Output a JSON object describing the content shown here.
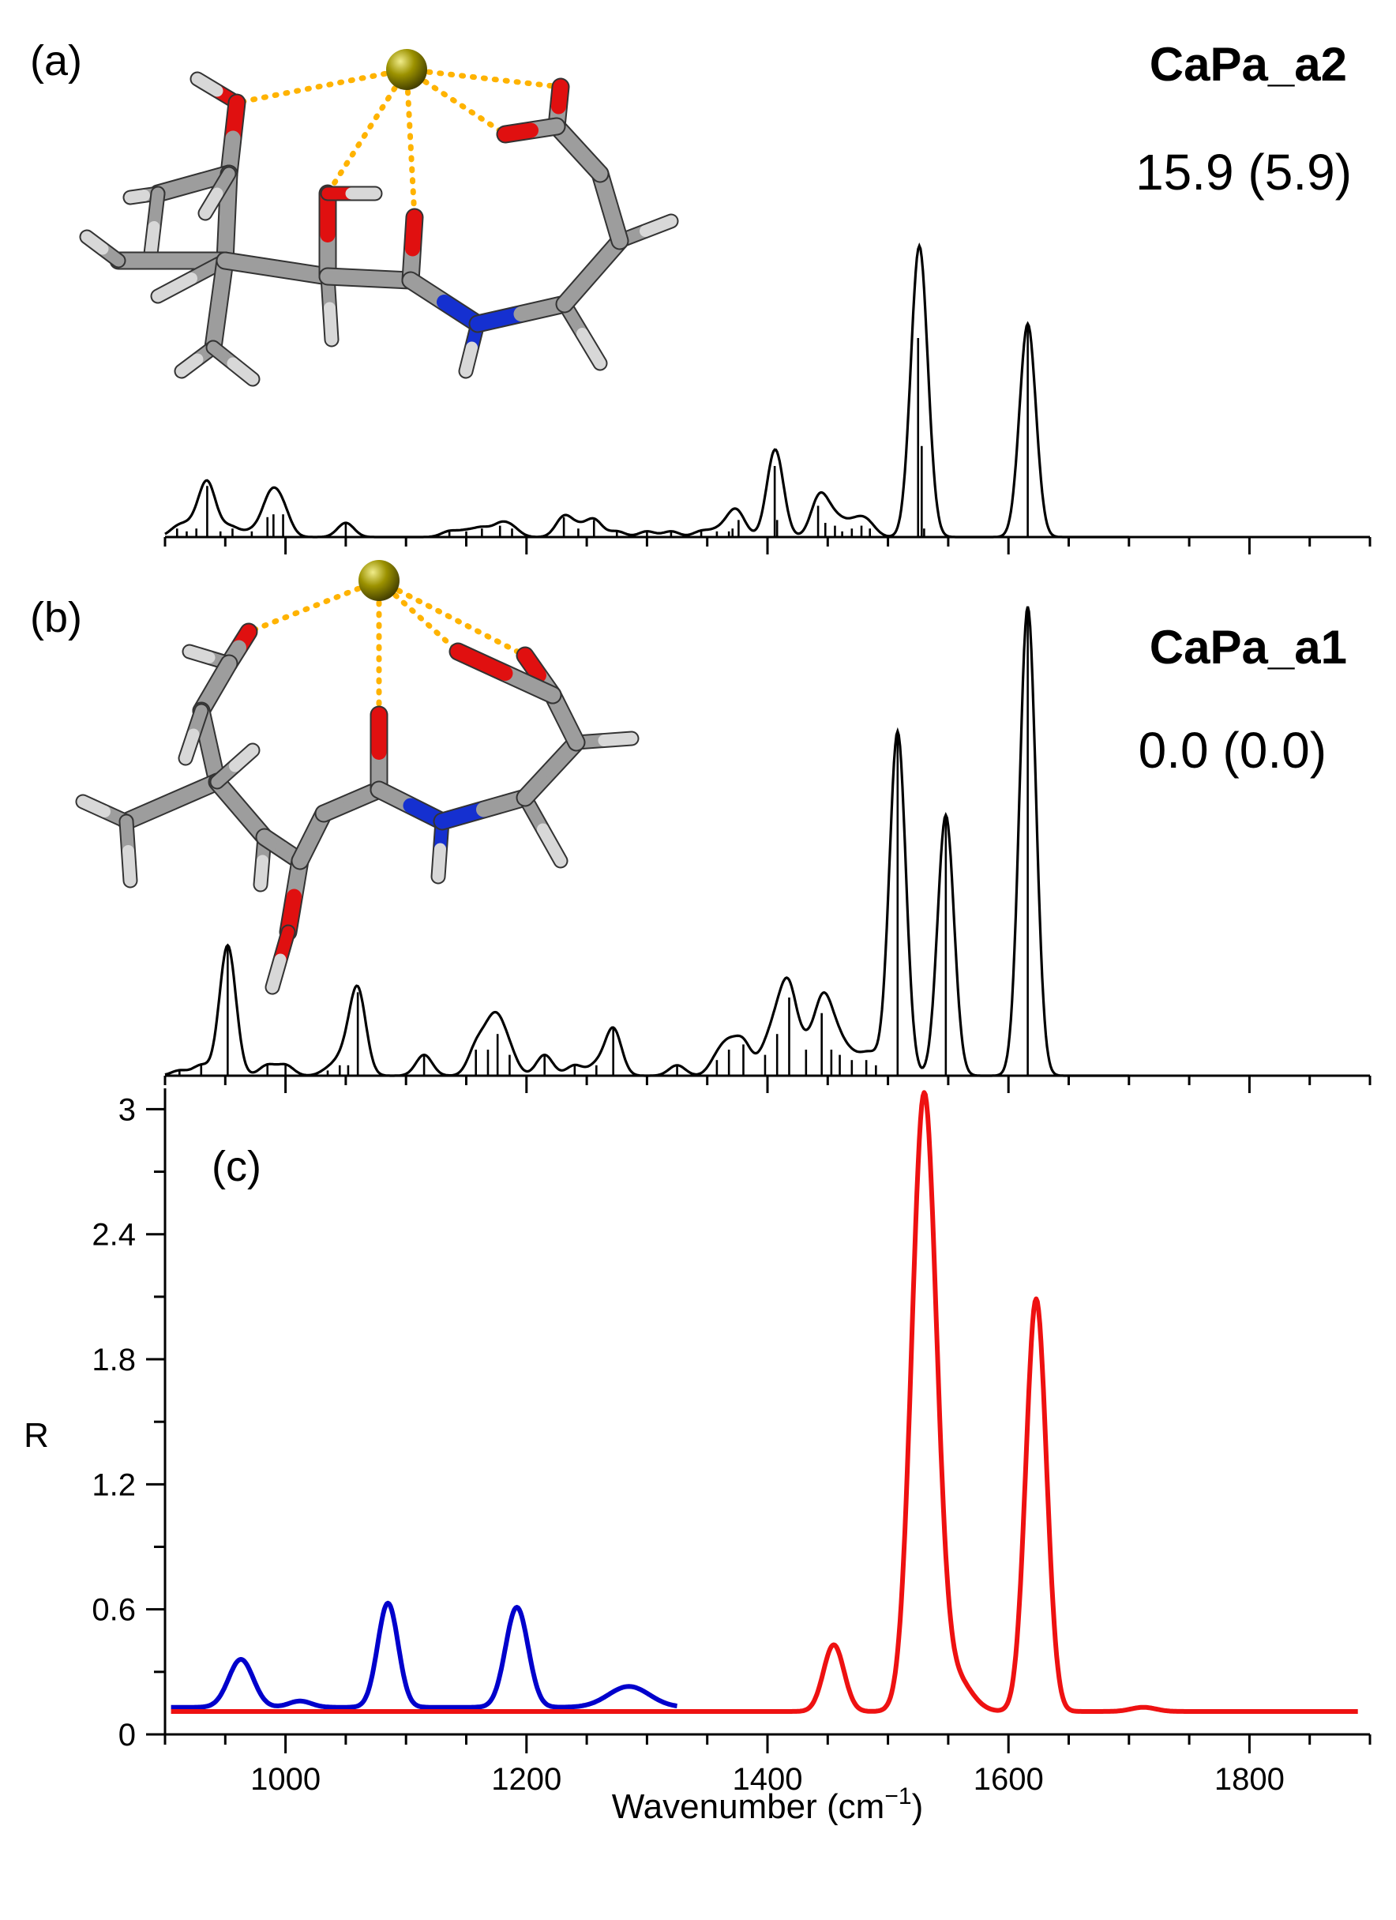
{
  "chart_data": [
    {
      "panel": "(a)",
      "type": "line",
      "title": "CaPa_a2",
      "annotation": "15.9 (5.9)",
      "xlabel": "",
      "ylabel": "",
      "xlim": [
        900,
        1900
      ],
      "x_ticks_major": [
        1000,
        1200,
        1400,
        1600,
        1800
      ],
      "y_ticks": [],
      "tick_labels_shown": false,
      "line_color": "#000000",
      "peak_width_fwhm": 16,
      "computed_sticks": [
        {
          "x": 910,
          "h": 0.03
        },
        {
          "x": 918,
          "h": 0.02
        },
        {
          "x": 926,
          "h": 0.03
        },
        {
          "x": 935,
          "h": 0.18
        },
        {
          "x": 946,
          "h": 0.02
        },
        {
          "x": 956,
          "h": 0.03
        },
        {
          "x": 972,
          "h": 0.02
        },
        {
          "x": 985,
          "h": 0.07
        },
        {
          "x": 990,
          "h": 0.08
        },
        {
          "x": 998,
          "h": 0.08
        },
        {
          "x": 1050,
          "h": 0.05
        },
        {
          "x": 1136,
          "h": 0.02
        },
        {
          "x": 1150,
          "h": 0.02
        },
        {
          "x": 1163,
          "h": 0.03
        },
        {
          "x": 1178,
          "h": 0.04
        },
        {
          "x": 1188,
          "h": 0.03
        },
        {
          "x": 1231,
          "h": 0.07
        },
        {
          "x": 1243,
          "h": 0.03
        },
        {
          "x": 1256,
          "h": 0.06
        },
        {
          "x": 1275,
          "h": 0.02
        },
        {
          "x": 1300,
          "h": 0.02
        },
        {
          "x": 1320,
          "h": 0.02
        },
        {
          "x": 1345,
          "h": 0.02
        },
        {
          "x": 1358,
          "h": 0.02
        },
        {
          "x": 1368,
          "h": 0.02
        },
        {
          "x": 1371,
          "h": 0.03
        },
        {
          "x": 1376,
          "h": 0.06
        },
        {
          "x": 1406,
          "h": 0.25
        },
        {
          "x": 1408,
          "h": 0.06
        },
        {
          "x": 1442,
          "h": 0.11
        },
        {
          "x": 1448,
          "h": 0.05
        },
        {
          "x": 1456,
          "h": 0.04
        },
        {
          "x": 1462,
          "h": 0.02
        },
        {
          "x": 1470,
          "h": 0.03
        },
        {
          "x": 1478,
          "h": 0.04
        },
        {
          "x": 1485,
          "h": 0.03
        },
        {
          "x": 1525,
          "h": 0.7
        },
        {
          "x": 1528,
          "h": 0.32
        },
        {
          "x": 1530,
          "h": 0.03
        },
        {
          "x": 1616,
          "h": 0.75
        }
      ]
    },
    {
      "panel": "(b)",
      "type": "line",
      "title": "CaPa_a1",
      "annotation": "0.0 (0.0)",
      "xlabel": "",
      "ylabel": "",
      "xlim": [
        900,
        1900
      ],
      "x_ticks_major": [
        1000,
        1200,
        1400,
        1600,
        1800
      ],
      "y_ticks": [],
      "tick_labels_shown": false,
      "line_color": "#000000",
      "peak_width_fwhm": 16,
      "computed_sticks": [
        {
          "x": 912,
          "h": 0.01
        },
        {
          "x": 930,
          "h": 0.02
        },
        {
          "x": 952,
          "h": 0.25
        },
        {
          "x": 985,
          "h": 0.02
        },
        {
          "x": 1000,
          "h": 0.02
        },
        {
          "x": 1035,
          "h": 0.01
        },
        {
          "x": 1045,
          "h": 0.02
        },
        {
          "x": 1052,
          "h": 0.02
        },
        {
          "x": 1060,
          "h": 0.16
        },
        {
          "x": 1115,
          "h": 0.04
        },
        {
          "x": 1158,
          "h": 0.05
        },
        {
          "x": 1168,
          "h": 0.05
        },
        {
          "x": 1176,
          "h": 0.08
        },
        {
          "x": 1186,
          "h": 0.04
        },
        {
          "x": 1215,
          "h": 0.04
        },
        {
          "x": 1240,
          "h": 0.02
        },
        {
          "x": 1258,
          "h": 0.02
        },
        {
          "x": 1272,
          "h": 0.09
        },
        {
          "x": 1325,
          "h": 0.02
        },
        {
          "x": 1358,
          "h": 0.03
        },
        {
          "x": 1368,
          "h": 0.05
        },
        {
          "x": 1380,
          "h": 0.06
        },
        {
          "x": 1398,
          "h": 0.04
        },
        {
          "x": 1408,
          "h": 0.08
        },
        {
          "x": 1418,
          "h": 0.15
        },
        {
          "x": 1432,
          "h": 0.05
        },
        {
          "x": 1445,
          "h": 0.12
        },
        {
          "x": 1453,
          "h": 0.05
        },
        {
          "x": 1460,
          "h": 0.04
        },
        {
          "x": 1470,
          "h": 0.03
        },
        {
          "x": 1482,
          "h": 0.03
        },
        {
          "x": 1490,
          "h": 0.02
        },
        {
          "x": 1508,
          "h": 0.66
        },
        {
          "x": 1548,
          "h": 0.5
        },
        {
          "x": 1616,
          "h": 0.9
        }
      ]
    },
    {
      "panel": "(c)",
      "type": "line",
      "title": "",
      "xlabel": "Wavenumber (cm−1)",
      "ylabel": "R",
      "xlim": [
        900,
        1900
      ],
      "ylim": [
        0,
        3.1
      ],
      "x_ticks_major": [
        1000,
        1200,
        1400,
        1600,
        1800
      ],
      "y_ticks": [
        0,
        0.6,
        1.2,
        1.8,
        2.4,
        3
      ],
      "y_tick_labels": [
        "0",
        "0.6",
        "1.2",
        "1.8",
        "2.4",
        "3"
      ],
      "x_tick_labels": [
        "1000",
        "1200",
        "1400",
        "1600",
        "1800"
      ],
      "series": [
        {
          "color": "#0000cc",
          "x_range": [
            905,
            1325
          ],
          "baseline": 0.13,
          "peaks": [
            {
              "x": 963,
              "amp": 0.23,
              "fwhm": 24
            },
            {
              "x": 1012,
              "amp": 0.03,
              "fwhm": 22
            },
            {
              "x": 1085,
              "amp": 0.5,
              "fwhm": 20
            },
            {
              "x": 1192,
              "amp": 0.48,
              "fwhm": 22
            },
            {
              "x": 1285,
              "amp": 0.1,
              "fwhm": 40
            }
          ]
        },
        {
          "color": "#ee1111",
          "x_range": [
            905,
            1890
          ],
          "baseline": 0.11,
          "peaks": [
            {
              "x": 1455,
              "amp": 0.32,
              "fwhm": 20
            },
            {
              "x": 1530,
              "amp": 2.95,
              "fwhm": 24
            },
            {
              "x": 1556,
              "amp": 0.16,
              "fwhm": 30
            },
            {
              "x": 1623,
              "amp": 1.98,
              "fwhm": 20
            },
            {
              "x": 1712,
              "amp": 0.02,
              "fwhm": 24
            }
          ]
        }
      ]
    }
  ],
  "structures": [
    {
      "panel": "(a)",
      "ion_color": "#8c8400",
      "coordination_color": "#ffb300"
    },
    {
      "panel": "(b)",
      "ion_color": "#8c8400",
      "coordination_color": "#ffb300"
    }
  ]
}
